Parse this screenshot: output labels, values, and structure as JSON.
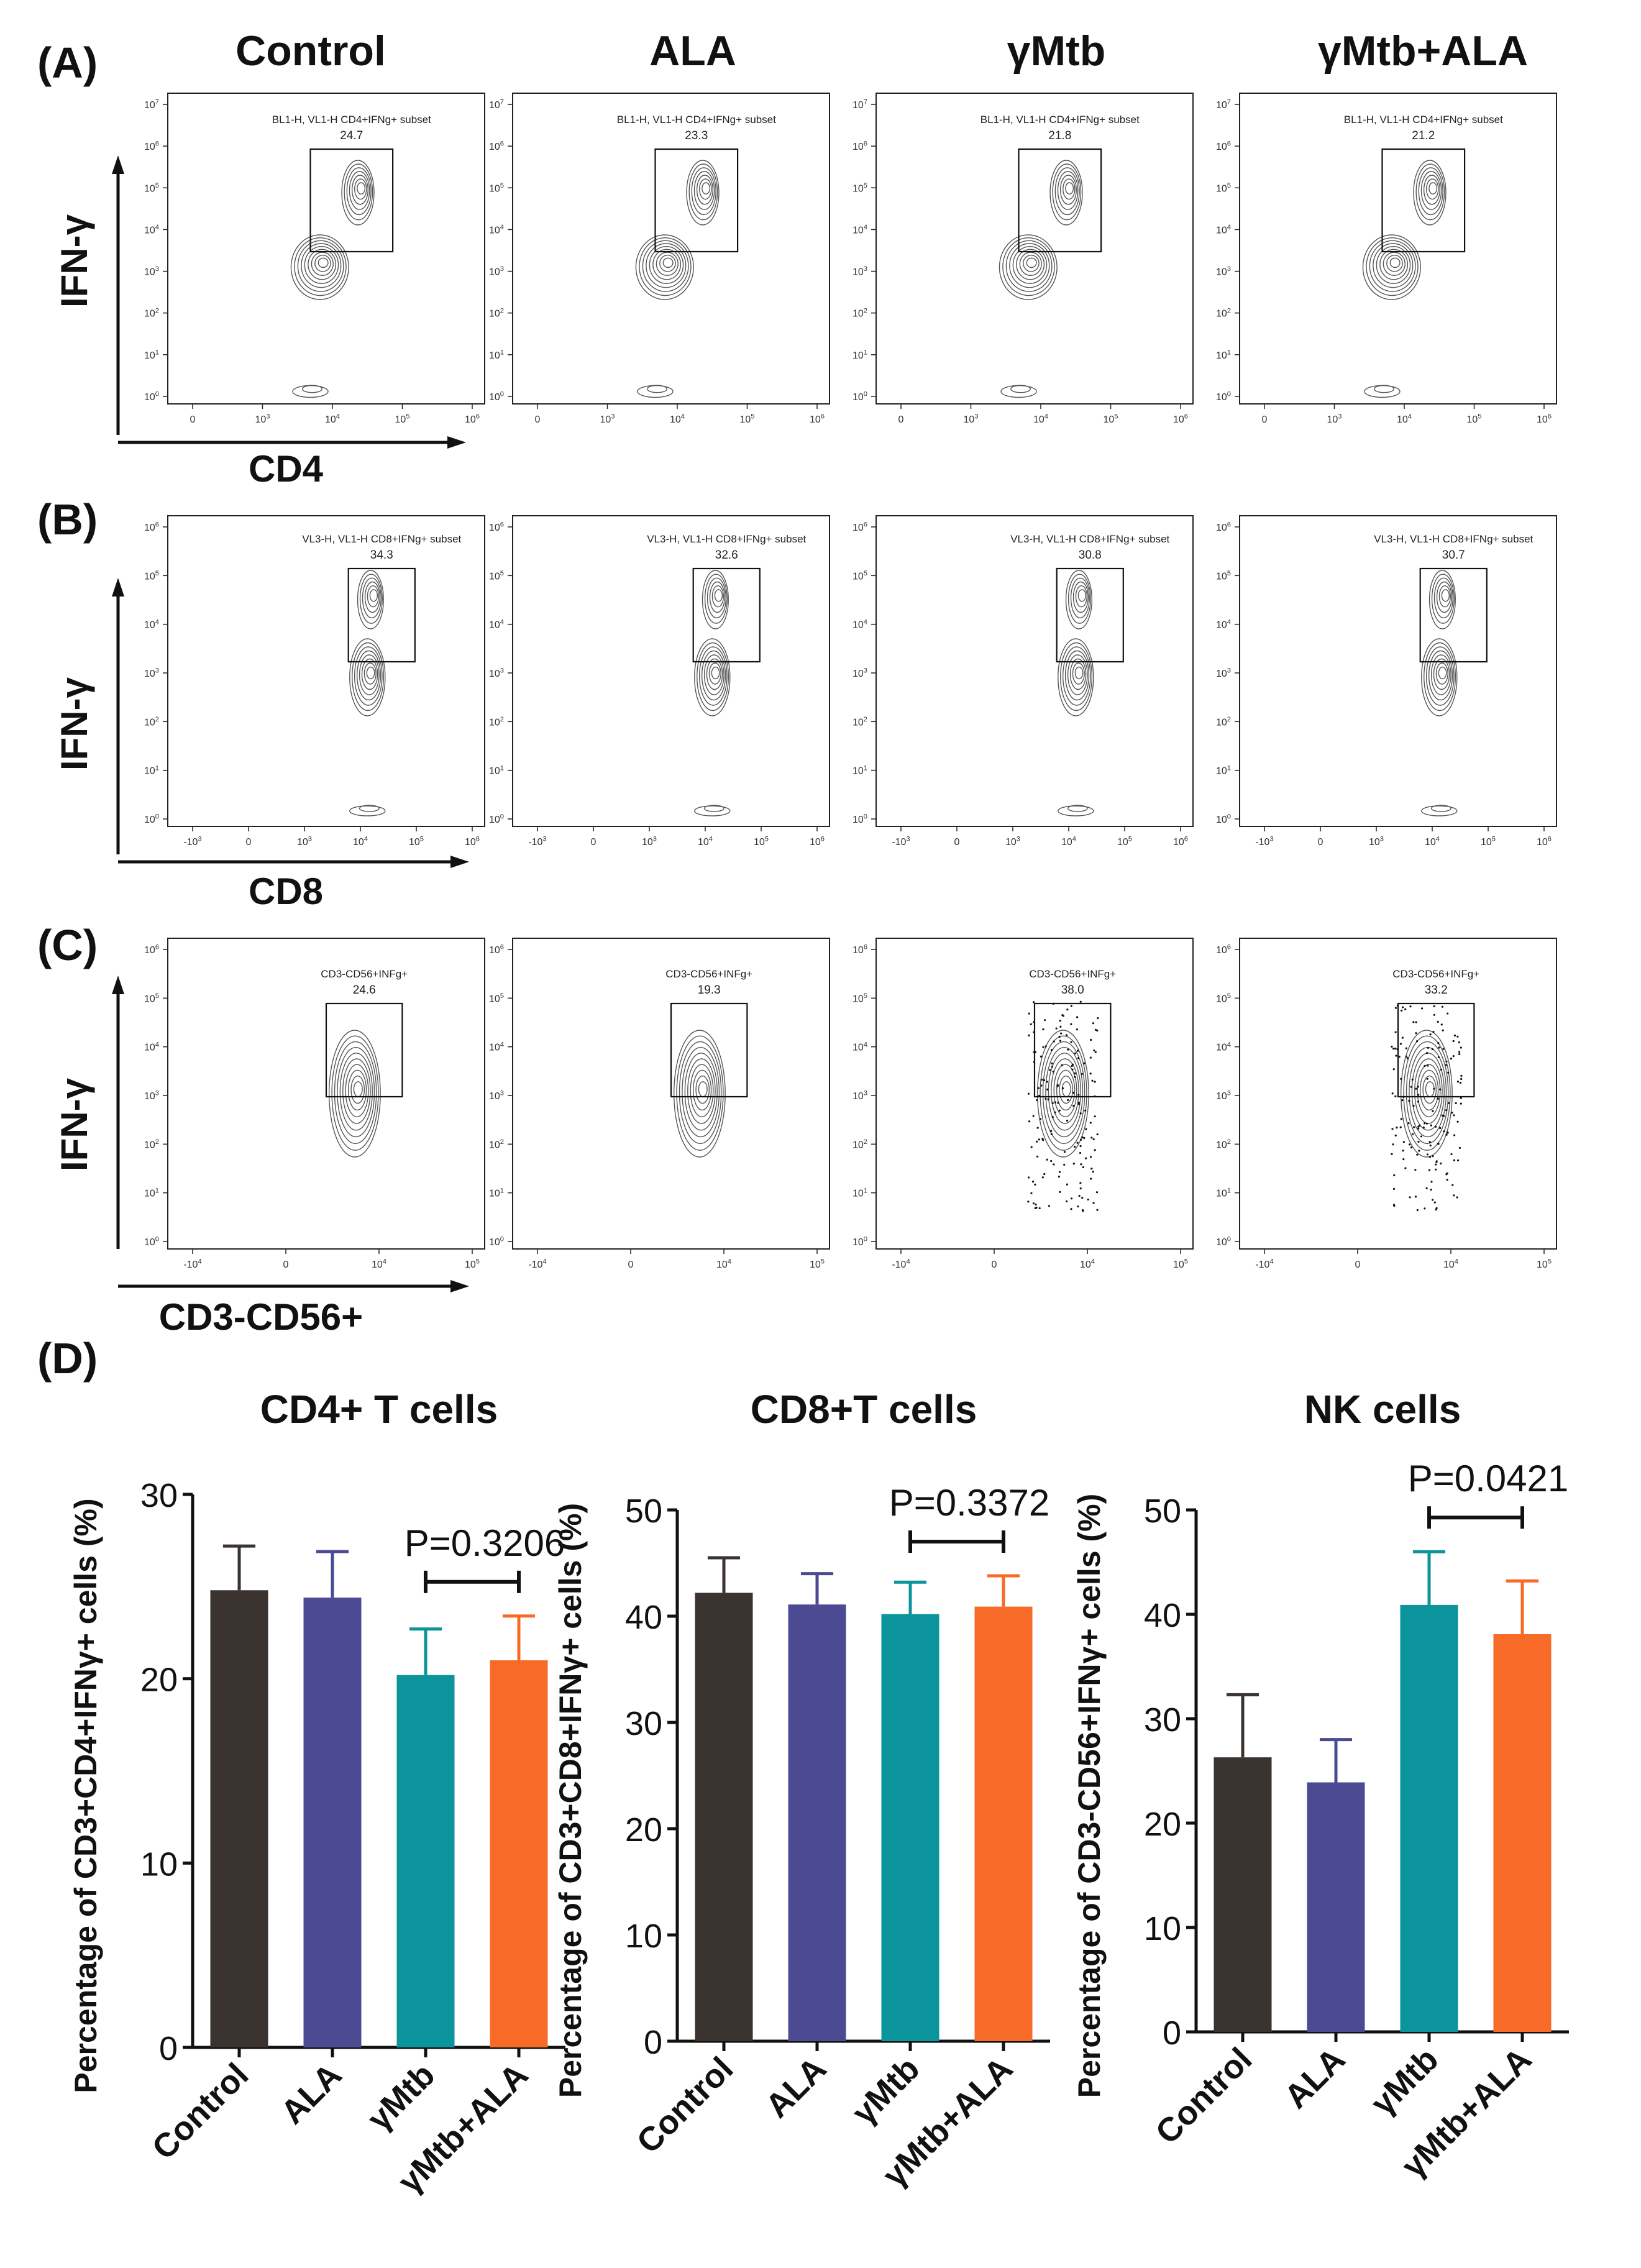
{
  "panels": [
    {
      "letter": "(A)",
      "xlabel": "CD4",
      "ylabel": "IFN-γ",
      "yticks": [
        "10^0",
        "10^1",
        "10^2",
        "10^3",
        "10^4",
        "10^5",
        "10^6",
        "10^7"
      ],
      "xticks": [
        "0",
        "10^3",
        "10^4",
        "10^5",
        "10^6"
      ],
      "plots": [
        {
          "group": "Control",
          "gate": "BL1-H, VL1-H CD4+IFNg+ subset",
          "percent": "24.7"
        },
        {
          "group": "ALA",
          "gate": "BL1-H, VL1-H CD4+IFNg+ subset",
          "percent": "23.3"
        },
        {
          "group": "γMtb",
          "gate": "BL1-H, VL1-H CD4+IFNg+ subset",
          "percent": "21.8"
        },
        {
          "group": "γMtb+ALA",
          "gate": "BL1-H, VL1-H CD4+IFNg+ subset",
          "percent": "21.2"
        }
      ]
    },
    {
      "letter": "(B)",
      "xlabel": "CD8",
      "ylabel": "IFN-γ",
      "yticks": [
        "10^0",
        "10^1",
        "10^2",
        "10^3",
        "10^4",
        "10^5",
        "10^6"
      ],
      "xticks": [
        "-10^3",
        "0",
        "10^3",
        "10^4",
        "10^5",
        "10^6"
      ],
      "plots": [
        {
          "group": "Control",
          "gate": "VL3-H, VL1-H CD8+IFNg+ subset",
          "percent": "34.3"
        },
        {
          "group": "ALA",
          "gate": "VL3-H, VL1-H CD8+IFNg+ subset",
          "percent": "32.6"
        },
        {
          "group": "γMtb",
          "gate": "VL3-H, VL1-H CD8+IFNg+ subset",
          "percent": "30.8"
        },
        {
          "group": "γMtb+ALA",
          "gate": "VL3-H, VL1-H CD8+IFNg+ subset",
          "percent": "30.7"
        }
      ]
    },
    {
      "letter": "(C)",
      "xlabel": "CD3-CD56+",
      "ylabel": "IFN-γ",
      "yticks": [
        "10^0",
        "10^1",
        "10^2",
        "10^3",
        "10^4",
        "10^5",
        "10^6"
      ],
      "xticks": [
        "-10^4",
        "0",
        "10^4",
        "10^5"
      ],
      "plots": [
        {
          "group": "Control",
          "gate": "CD3-CD56+INFg+",
          "percent": "24.6"
        },
        {
          "group": "ALA",
          "gate": "CD3-CD56+INFg+",
          "percent": "19.3"
        },
        {
          "group": "γMtb",
          "gate": "CD3-CD56+INFg+",
          "percent": "38.0"
        },
        {
          "group": "γMtb+ALA",
          "gate": "CD3-CD56+INFg+",
          "percent": "33.2"
        }
      ]
    }
  ],
  "panel_d_letter": "(D)",
  "colors": {
    "Control": "#3a3330",
    "ALA": "#4b4a93",
    "γMtb": "#0b949b",
    "γMtb+ALA": "#f86a28",
    "contour": "#555555",
    "axis": "#111111"
  },
  "chart_data": [
    {
      "type": "bar",
      "title": "CD4+ T cells",
      "ylabel": "Percentage of CD3+CD4+IFNγ+ cells (%)",
      "categories": [
        "Control",
        "ALA",
        "γMtb",
        "γMtb+ALA"
      ],
      "values": [
        24.8,
        24.4,
        20.2,
        21.0
      ],
      "errors": [
        2.4,
        2.5,
        2.5,
        2.4
      ],
      "ylim": [
        0,
        30
      ],
      "yticks": [
        "0",
        "10",
        "20",
        "30"
      ],
      "comparison": {
        "between": [
          "γMtb",
          "γMtb+ALA"
        ],
        "label": "P=0.3206"
      }
    },
    {
      "type": "bar",
      "title": "CD8+T cells",
      "ylabel": "Percentage of CD3+CD8+IFNγ+ cells (%)",
      "categories": [
        "Control",
        "ALA",
        "γMtb",
        "γMtb+ALA"
      ],
      "values": [
        42.2,
        41.1,
        40.2,
        40.9
      ],
      "errors": [
        3.3,
        2.9,
        3.0,
        2.9
      ],
      "ylim": [
        0,
        50
      ],
      "yticks": [
        "0",
        "10",
        "20",
        "30",
        "40",
        "50"
      ],
      "comparison": {
        "between": [
          "γMtb",
          "γMtb+ALA"
        ],
        "label": "P=0.3372"
      }
    },
    {
      "type": "bar",
      "title": "NK cells",
      "ylabel": "Percentage of CD3-CD56+IFNγ+ cells (%)",
      "categories": [
        "Control",
        "ALA",
        "γMtb",
        "γMtb+ALA"
      ],
      "values": [
        26.3,
        23.9,
        40.9,
        38.1
      ],
      "errors": [
        6.0,
        4.1,
        5.1,
        5.1
      ],
      "ylim": [
        0,
        50
      ],
      "yticks": [
        "0",
        "10",
        "20",
        "30",
        "40",
        "50"
      ],
      "comparison": {
        "between": [
          "γMtb",
          "γMtb+ALA"
        ],
        "label": "P=0.0421"
      }
    }
  ]
}
